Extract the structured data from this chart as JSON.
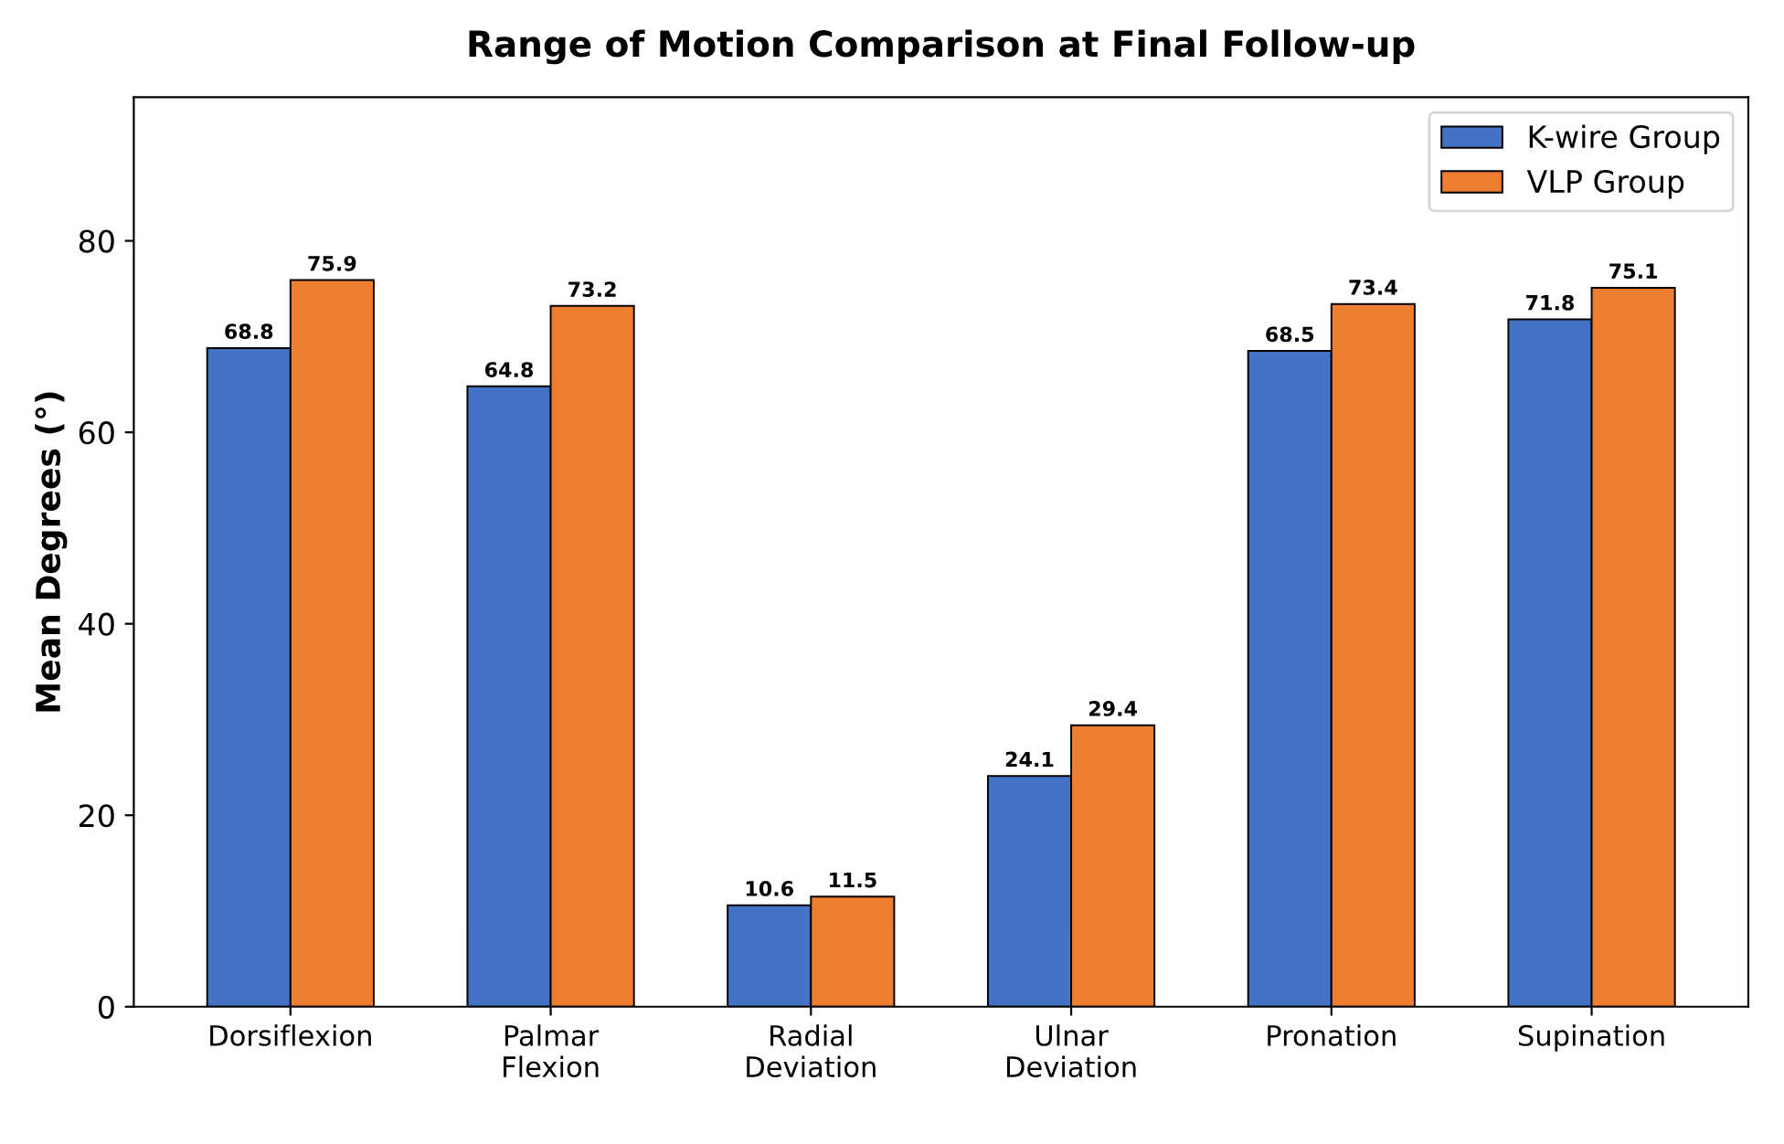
{
  "chart_data": {
    "type": "bar",
    "title": "Range of Motion Comparison at Final Follow-up",
    "ylabel": "Mean Degrees (°)",
    "categories": [
      "Dorsiflexion",
      "Palmar\nFlexion",
      "Radial\nDeviation",
      "Ulnar\nDeviation",
      "Pronation",
      "Supination"
    ],
    "series": [
      {
        "name": "K-wire Group",
        "color": "#4472c4",
        "values": [
          68.8,
          64.8,
          10.6,
          24.1,
          68.5,
          71.8
        ]
      },
      {
        "name": "VLP Group",
        "color": "#ed7d31",
        "values": [
          75.9,
          73.2,
          11.5,
          29.4,
          73.4,
          75.1
        ]
      }
    ],
    "ylim": [
      0,
      95
    ],
    "yticks": [
      0,
      20,
      40,
      60,
      80
    ],
    "data_labels": true,
    "legend": "top right",
    "grid": false
  }
}
